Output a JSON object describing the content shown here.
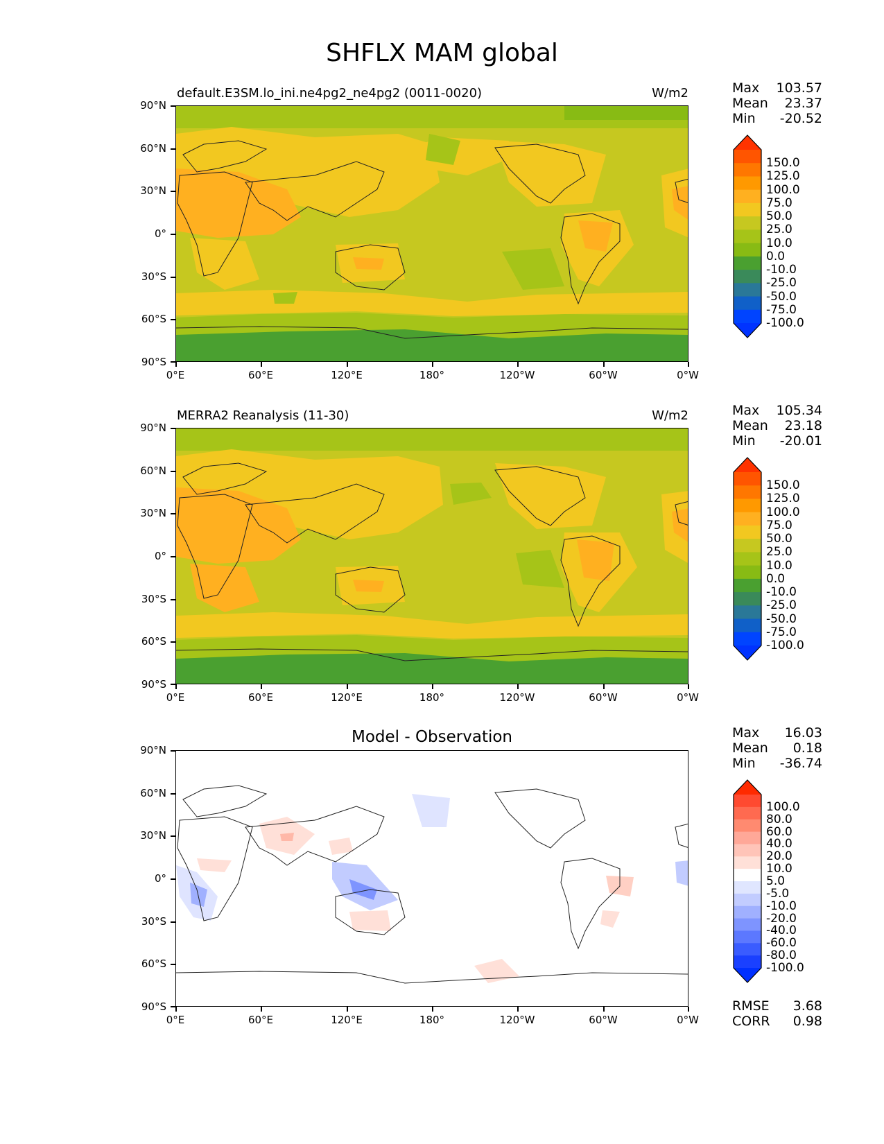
{
  "figure": {
    "title": "SHFLX MAM global"
  },
  "axes": {
    "lat_labels": [
      "90°N",
      "60°N",
      "30°N",
      "0°",
      "30°S",
      "60°S",
      "90°S"
    ],
    "lon_labels": [
      "0°E",
      "60°E",
      "120°E",
      "180°",
      "120°W",
      "60°W",
      "0°W"
    ]
  },
  "panels": [
    {
      "id": "model",
      "title_left": "default.E3SM.lo_ini.ne4pg2_ne4pg2 (0011-0020)",
      "title_right": "W/m2",
      "title_center": "",
      "stats": {
        "max_label": "Max",
        "max": "103.57",
        "mean_label": "Mean",
        "mean": "23.37",
        "min_label": "Min",
        "min": "-20.52"
      },
      "colorbar": {
        "levels": [
          "150.0",
          "125.0",
          "100.0",
          "75.0",
          "50.0",
          "25.0",
          "10.0",
          "0.0",
          "-10.0",
          "-25.0",
          "-50.0",
          "-75.0",
          "-100.0"
        ],
        "colors": [
          "#ff3300",
          "#ff5500",
          "#ff7700",
          "#ff9900",
          "#ffb020",
          "#f2c820",
          "#c6c820",
          "#a6c418",
          "#88bb14",
          "#4aa030",
          "#3a8a5a",
          "#2a7898",
          "#1060c8",
          "#0044ff",
          "#0033ff"
        ]
      }
    },
    {
      "id": "obs",
      "title_left": "MERRA2 Reanalysis (11-30)",
      "title_right": "W/m2",
      "title_center": "",
      "stats": {
        "max_label": "Max",
        "max": "105.34",
        "mean_label": "Mean",
        "mean": "23.18",
        "min_label": "Min",
        "min": "-20.01"
      },
      "colorbar": {
        "levels": [
          "150.0",
          "125.0",
          "100.0",
          "75.0",
          "50.0",
          "25.0",
          "10.0",
          "0.0",
          "-10.0",
          "-25.0",
          "-50.0",
          "-75.0",
          "-100.0"
        ],
        "colors": [
          "#ff3300",
          "#ff5500",
          "#ff7700",
          "#ff9900",
          "#ffb020",
          "#f2c820",
          "#c6c820",
          "#a6c418",
          "#88bb14",
          "#4aa030",
          "#3a8a5a",
          "#2a7898",
          "#1060c8",
          "#0044ff",
          "#0033ff"
        ]
      }
    },
    {
      "id": "diff",
      "title_left": "",
      "title_right": "",
      "title_center": "Model - Observation",
      "stats": {
        "max_label": "Max",
        "max": "16.03",
        "mean_label": "Mean",
        "mean": "0.18",
        "min_label": "Min",
        "min": "-36.74"
      },
      "colorbar": {
        "levels": [
          "100.0",
          "80.0",
          "60.0",
          "40.0",
          "20.0",
          "10.0",
          "5.0",
          "-5.0",
          "-10.0",
          "-20.0",
          "-40.0",
          "-60.0",
          "-80.0",
          "-100.0"
        ],
        "colors": [
          "#ff2a00",
          "#ff4a30",
          "#ff6a50",
          "#ff8a70",
          "#ffa898",
          "#ffc4b8",
          "#ffe0d8",
          "#ffffff",
          "#e0e6ff",
          "#c2ccff",
          "#a0b0ff",
          "#7e94ff",
          "#5c78ff",
          "#3a5cff",
          "#1a40ff",
          "#0030ff"
        ]
      },
      "errors": {
        "rmse_label": "RMSE",
        "rmse": "3.68",
        "corr_label": "CORR",
        "corr": "0.98"
      }
    }
  ]
}
